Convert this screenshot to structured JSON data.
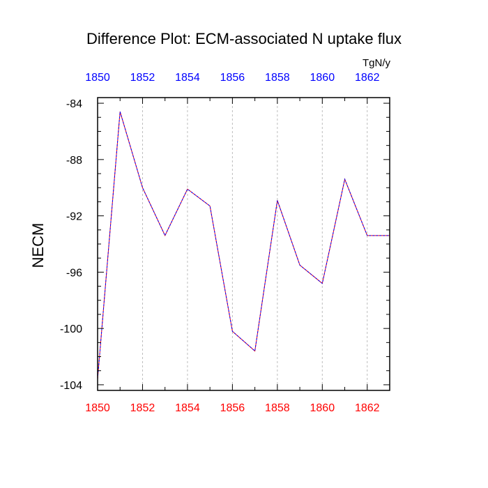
{
  "chart_data": {
    "type": "line",
    "title": "Difference Plot: ECM-associated N uptake flux",
    "units": "TgN/y",
    "ylabel": "NECM",
    "xlabel": "",
    "xlim": [
      1850,
      1863
    ],
    "ylim": [
      -104.4,
      -83.6
    ],
    "x_ticks": [
      1850,
      1852,
      1854,
      1856,
      1858,
      1860,
      1862
    ],
    "y_ticks": [
      -84,
      -88,
      -92,
      -96,
      -100,
      -104
    ],
    "grid": "vertical-dashed",
    "colors": {
      "bottom_axis_labels": "#ff0000",
      "top_axis_labels": "#0000ff",
      "line_primary": "#ff0000",
      "line_overlay": "#0000ff"
    },
    "series": [
      {
        "x": [
          1850,
          1851,
          1852,
          1853,
          1854,
          1855,
          1856,
          1857,
          1858,
          1859,
          1860,
          1861,
          1862,
          1863
        ],
        "values": [
          -103.6,
          -84.6,
          -90.0,
          -93.4,
          -90.1,
          -91.3,
          -100.2,
          -101.6,
          -90.9,
          -95.5,
          -96.8,
          -89.4,
          -93.4,
          -93.4
        ]
      }
    ]
  }
}
